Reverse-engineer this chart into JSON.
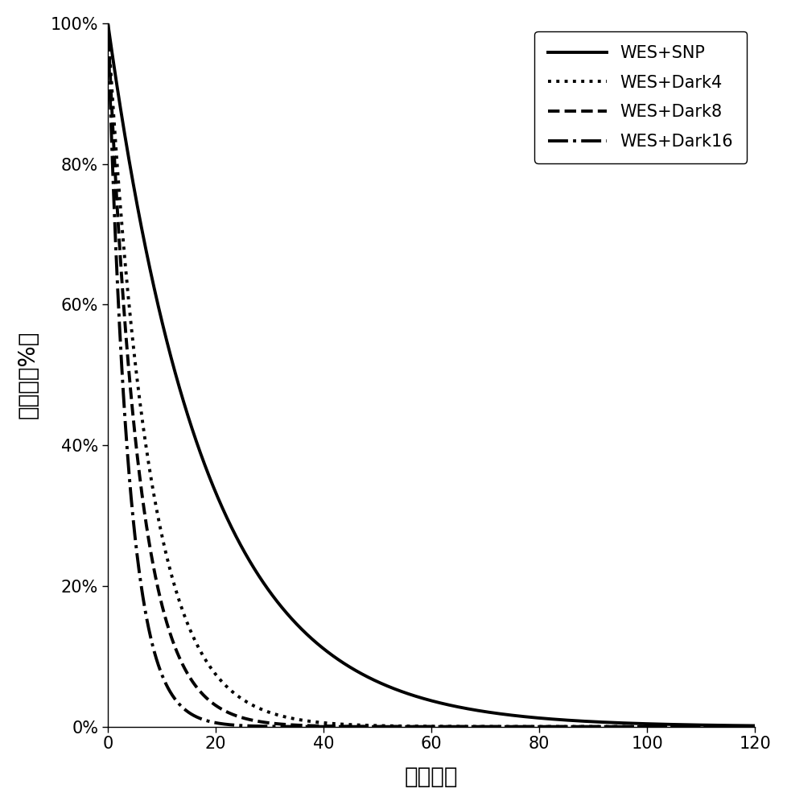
{
  "title": "",
  "xlabel": "测序深度",
  "ylabel": "覆盖度（%）",
  "xlim": [
    0,
    120
  ],
  "ylim": [
    0,
    1.0
  ],
  "yticks": [
    0,
    0.2,
    0.4,
    0.6,
    0.8,
    1.0
  ],
  "ytick_labels": [
    "0%",
    "20%",
    "40%",
    "60%",
    "80%",
    "100%"
  ],
  "xticks": [
    0,
    20,
    40,
    60,
    80,
    100,
    120
  ],
  "series": [
    {
      "label": "WES+SNP",
      "linestyle": "solid",
      "linewidth": 2.8,
      "color": "#000000",
      "decay_rate": 0.055
    },
    {
      "label": "WES+Dark4",
      "linestyle": "dotted",
      "linewidth": 2.8,
      "color": "#000000",
      "decay_rate": 0.13
    },
    {
      "label": "WES+Dark8",
      "linestyle": "dashed",
      "linewidth": 2.8,
      "color": "#000000",
      "decay_rate": 0.175
    },
    {
      "label": "WES+Dark16",
      "linestyle": "dashdot",
      "linewidth": 2.8,
      "color": "#000000",
      "decay_rate": 0.26
    }
  ],
  "legend_loc": "upper right",
  "legend_fontsize": 15,
  "axis_label_fontsize": 20,
  "tick_fontsize": 15,
  "background_color": "#ffffff",
  "figsize": [
    9.79,
    10.0
  ],
  "dpi": 100,
  "legend_handlelength": 3.5,
  "legend_labelspacing": 0.8,
  "legend_borderpad": 0.8
}
